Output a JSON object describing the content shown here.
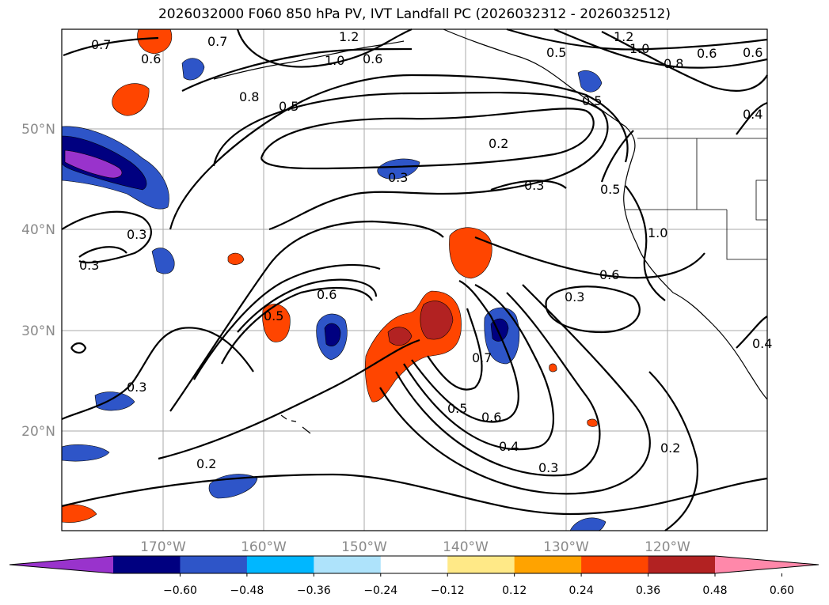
{
  "title": "2026032000 F060 850 hPa PV, IVT Landfall PC (2026032312 - 2026032512)",
  "lat_labels": [
    "50°N",
    "40°N",
    "30°N",
    "20°N"
  ],
  "lon_labels": [
    "170°W",
    "160°W",
    "150°W",
    "140°W",
    "130°W",
    "120°W"
  ],
  "colorbar": {
    "ticks": [
      "−0.60",
      "−0.48",
      "−0.36",
      "−0.24",
      "−0.12",
      "0.12",
      "0.24",
      "0.36",
      "0.48",
      "0.60"
    ],
    "colors": [
      "#9933cc",
      "#000080",
      "#2e55c8",
      "#00b7ff",
      "#aee3fb",
      "#ffffff",
      "#ffe987",
      "#ffa300",
      "#ff4500",
      "#b22222",
      "#ff88aa"
    ]
  },
  "contour_labels": [
    "0.7",
    "0.6",
    "0.7",
    "1.2",
    "1.0",
    "0.6",
    "0.8",
    "0.5",
    "0.5",
    "0.6",
    "1.2",
    "1.0",
    "0.8",
    "0.6",
    "0.4",
    "0.5",
    "0.2",
    "0.3",
    "0.3",
    "0.5",
    "0.3",
    "0.3",
    "1.0",
    "0.6",
    "0.3",
    "0.5",
    "0.6",
    "0.7",
    "0.3",
    "0.5",
    "0.6",
    "0.4",
    "0.3",
    "0.2",
    "0.2",
    "0.4"
  ]
}
